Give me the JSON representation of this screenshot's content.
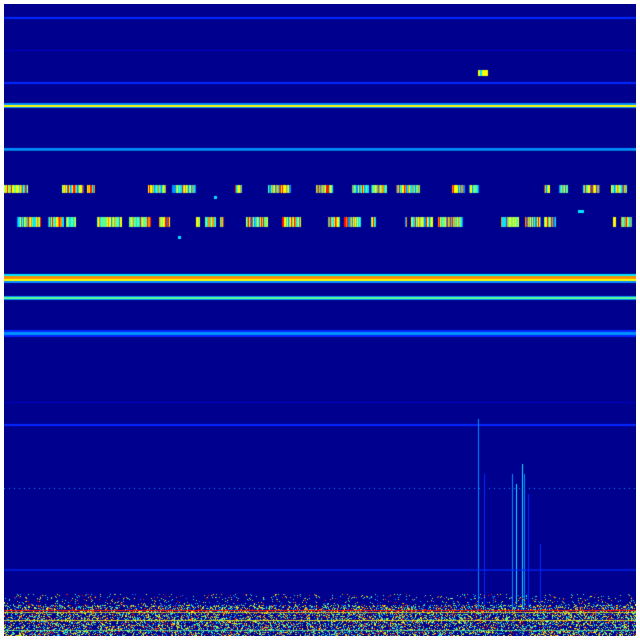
{
  "image": {
    "kind": "spectrogram-heatmap",
    "colormap": "jet",
    "colors": {
      "background": "#00008f",
      "deep_blue": "#0000c8",
      "blue": "#0028ff",
      "light_blue": "#0090ff",
      "cyan": "#00e8ff",
      "green": "#60ff90",
      "yellow": "#ffff00",
      "orange": "#ff9000",
      "red": "#ff1000",
      "border": "#ffffff"
    }
  }
}
